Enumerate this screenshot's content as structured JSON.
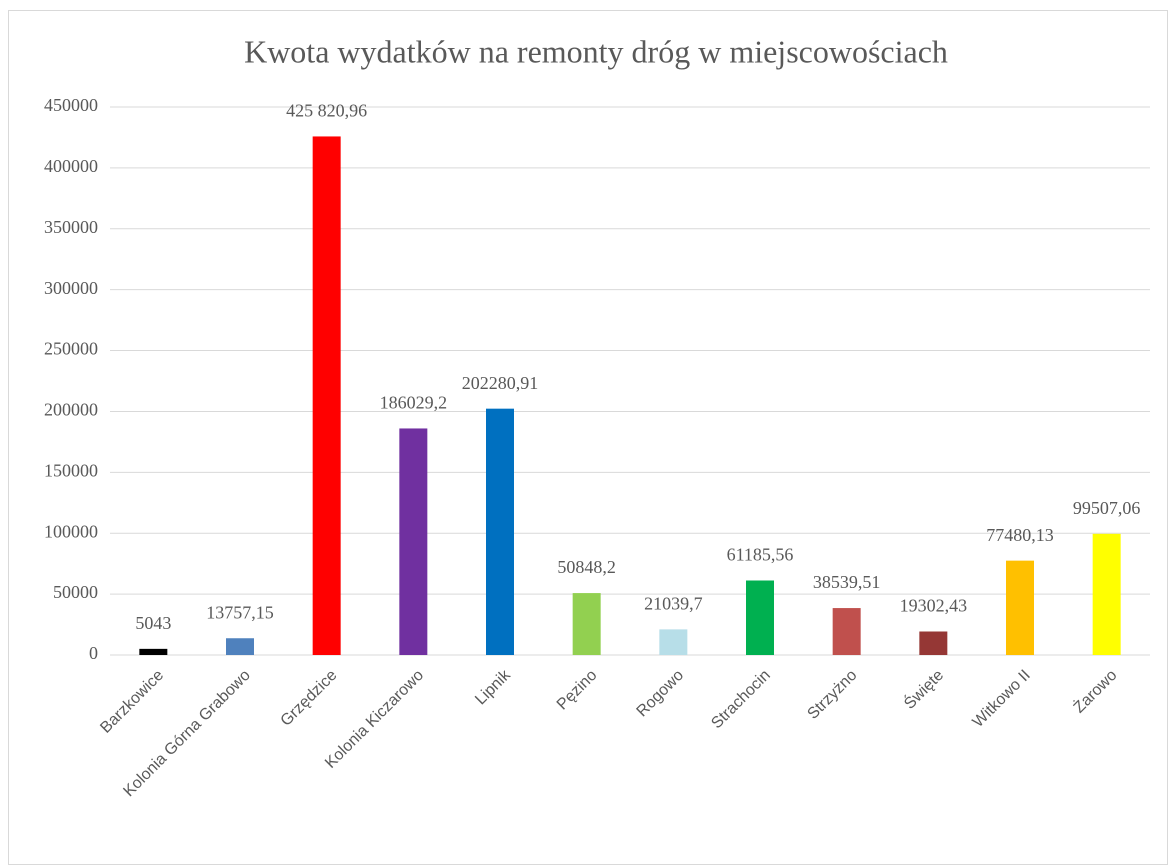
{
  "chart_data": {
    "type": "bar",
    "title": "Kwota wydatków na remonty dróg w miejscowościach",
    "categories": [
      "Barzkowice",
      "Kolonia Górna Grabowo",
      "Grzędzice",
      "Kolonia Kiczarowo",
      "Lipnik",
      "Pęzino",
      "Rogowo",
      "Strachocin",
      "Strzyżno",
      "Święte",
      "Witkowo II",
      "Żarowo"
    ],
    "values": [
      5043,
      13757.15,
      425820.96,
      186029.2,
      202280.91,
      50848.2,
      21039.7,
      61185.56,
      38539.51,
      19302.43,
      77480.13,
      99507.06
    ],
    "value_labels": [
      "5043",
      "13757,15",
      "425 820,96",
      "186029,2",
      "202280,91",
      "50848,2",
      "21039,7",
      "61185,56",
      "38539,51",
      "19302,43",
      "77480,13",
      "99507,06"
    ],
    "colors": [
      "#000000",
      "#4f81bd",
      "#ff0000",
      "#7030a0",
      "#0070c0",
      "#92d050",
      "#b7dee8",
      "#00b050",
      "#c0504d",
      "#953735",
      "#ffc000",
      "#ffff00"
    ],
    "ylim": [
      0,
      450000
    ],
    "yticks": [
      0,
      50000,
      100000,
      150000,
      200000,
      250000,
      300000,
      350000,
      400000,
      450000
    ],
    "grid": true
  }
}
